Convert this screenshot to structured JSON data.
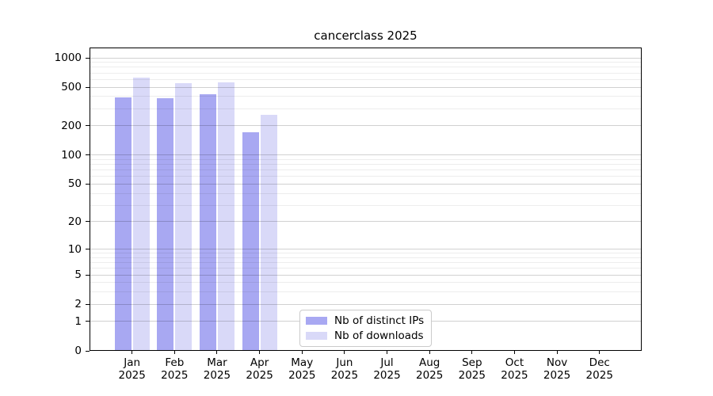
{
  "page": {
    "title": "cancerclass 2025"
  },
  "chart_data": {
    "type": "bar",
    "title": "cancerclass 2025",
    "months": [
      "Jan",
      "Feb",
      "Mar",
      "Apr",
      "May",
      "Jun",
      "Jul",
      "Aug",
      "Sep",
      "Oct",
      "Nov",
      "Dec"
    ],
    "year": "2025",
    "series": [
      {
        "name": "Nb of distinct IPs",
        "color": "#a8a8f2",
        "values": [
          390,
          385,
          420,
          172,
          null,
          null,
          null,
          null,
          null,
          null,
          null,
          null
        ]
      },
      {
        "name": "Nb of downloads",
        "color": "#d9d9f8",
        "values": [
          630,
          550,
          565,
          260,
          null,
          null,
          null,
          null,
          null,
          null,
          null,
          null
        ]
      }
    ],
    "y_ticks": [
      0,
      1,
      2,
      5,
      10,
      20,
      50,
      100,
      200,
      500,
      1000
    ],
    "y_scale": "log10(1+x)",
    "ylim": [
      0,
      1275
    ],
    "grid": true,
    "legend": {
      "position": "lower center"
    },
    "colors": {
      "spine": "#000000",
      "grid_labeled": "rgba(0,0,0,0.18)",
      "grid_minor": "rgba(0,0,0,0.07)",
      "background": "#ffffff"
    }
  }
}
